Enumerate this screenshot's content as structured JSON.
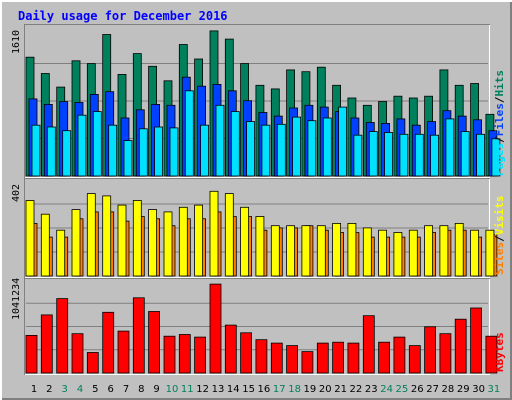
{
  "title": "Daily usage for December 2016",
  "colors": {
    "background": "#c0c0c0",
    "title": "#0000ff",
    "hits": "#00805c",
    "files": "#0040ff",
    "pages": "#00e0ff",
    "visits": "#ffff00",
    "sites": "#ff8000",
    "kbytes": "#ff0000",
    "weekend_label": "#00805c",
    "weekday_label": "#000000",
    "grid": "#808080"
  },
  "chart_data": [
    {
      "type": "bar",
      "panel": "hits-files-pages",
      "y_max_label": "1610",
      "ylim": [
        0,
        1610
      ],
      "legend": {
        "hits": "Hits",
        "files": "Files",
        "pages": "Pages",
        "sep": "/"
      },
      "categories": [
        "1",
        "2",
        "3",
        "4",
        "5",
        "6",
        "7",
        "8",
        "9",
        "10",
        "11",
        "12",
        "13",
        "14",
        "15",
        "16",
        "17",
        "18",
        "19",
        "20",
        "21",
        "22",
        "23",
        "24",
        "25",
        "26",
        "27",
        "28",
        "29",
        "30",
        "31"
      ],
      "series": [
        {
          "name": "Hits",
          "values": [
            1310,
            1130,
            980,
            1270,
            1240,
            1560,
            1120,
            1350,
            1210,
            1050,
            1450,
            1290,
            1600,
            1510,
            1240,
            1000,
            960,
            1170,
            1150,
            1200,
            1000,
            860,
            780,
            820,
            880,
            860,
            880,
            1170,
            1000,
            1020,
            680
          ]
        },
        {
          "name": "Files",
          "values": [
            850,
            790,
            820,
            810,
            900,
            930,
            640,
            730,
            790,
            780,
            1090,
            990,
            1010,
            940,
            830,
            700,
            660,
            750,
            780,
            760,
            710,
            640,
            590,
            580,
            630,
            560,
            600,
            720,
            660,
            620,
            500
          ]
        },
        {
          "name": "Pages",
          "values": [
            560,
            540,
            500,
            670,
            710,
            560,
            390,
            520,
            540,
            530,
            940,
            560,
            780,
            710,
            600,
            560,
            570,
            650,
            610,
            640,
            760,
            450,
            490,
            480,
            460,
            460,
            450,
            630,
            490,
            460,
            410
          ]
        }
      ]
    },
    {
      "type": "bar",
      "panel": "visits-sites",
      "y_max_label": "402",
      "ylim": [
        0,
        402
      ],
      "legend": {
        "visits": "Visits",
        "sites": "Sites",
        "sep": "/"
      },
      "categories": [
        "1",
        "2",
        "3",
        "4",
        "5",
        "6",
        "7",
        "8",
        "9",
        "10",
        "11",
        "12",
        "13",
        "14",
        "15",
        "16",
        "17",
        "18",
        "19",
        "20",
        "21",
        "22",
        "23",
        "24",
        "25",
        "26",
        "27",
        "28",
        "29",
        "30",
        "31"
      ],
      "series": [
        {
          "name": "Visits",
          "values": [
            230,
            170,
            170,
            250,
            280,
            280,
            240,
            260,
            250,
            220,
            250,
            250,
            280,
            260,
            260,
            200,
            210,
            210,
            220,
            200,
            190,
            190,
            170,
            170,
            170,
            170,
            190,
            200,
            200,
            170,
            180
          ]
        },
        {
          "name": "Sites",
          "values": [
            330,
            270,
            200,
            290,
            360,
            350,
            310,
            330,
            290,
            280,
            300,
            310,
            370,
            360,
            300,
            260,
            220,
            220,
            220,
            220,
            230,
            230,
            210,
            200,
            190,
            200,
            220,
            220,
            230,
            200,
            200
          ]
        }
      ]
    },
    {
      "type": "bar",
      "panel": "kbytes",
      "y_max_label": "1041234",
      "ylim": [
        0,
        1041234
      ],
      "legend": {
        "kbytes": "KBytes"
      },
      "categories": [
        "1",
        "2",
        "3",
        "4",
        "5",
        "6",
        "7",
        "8",
        "9",
        "10",
        "11",
        "12",
        "13",
        "14",
        "15",
        "16",
        "17",
        "18",
        "19",
        "20",
        "21",
        "22",
        "23",
        "24",
        "25",
        "26",
        "27",
        "28",
        "29",
        "30",
        "31"
      ],
      "series": [
        {
          "name": "KBytes",
          "values": [
            440000,
            680000,
            870000,
            460000,
            240000,
            710000,
            490000,
            880000,
            720000,
            430000,
            450000,
            420000,
            1040000,
            560000,
            470000,
            390000,
            350000,
            320000,
            250000,
            350000,
            360000,
            350000,
            670000,
            360000,
            420000,
            320000,
            540000,
            460000,
            630000,
            760000,
            430000
          ]
        }
      ]
    }
  ],
  "x_axis": {
    "labels": [
      "1",
      "2",
      "3",
      "4",
      "5",
      "6",
      "7",
      "8",
      "9",
      "10",
      "11",
      "12",
      "13",
      "14",
      "15",
      "16",
      "17",
      "18",
      "19",
      "20",
      "21",
      "22",
      "23",
      "24",
      "25",
      "26",
      "27",
      "28",
      "29",
      "30",
      "31"
    ],
    "weekend": [
      false,
      false,
      true,
      true,
      false,
      false,
      false,
      false,
      false,
      true,
      true,
      false,
      false,
      false,
      false,
      false,
      true,
      true,
      false,
      false,
      false,
      false,
      false,
      true,
      true,
      false,
      false,
      false,
      false,
      false,
      true
    ]
  }
}
